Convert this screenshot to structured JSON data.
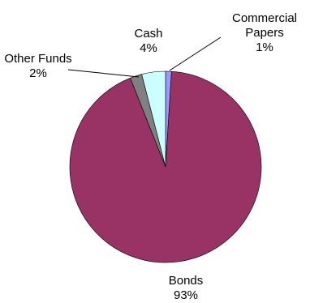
{
  "chart_data": {
    "type": "pie",
    "title": "",
    "start_angle_deg": 0,
    "direction": "clockwise",
    "slices": [
      {
        "name": "Commercial Papers",
        "label_lines": [
          "Commercial",
          "Papers"
        ],
        "value_label": "1%",
        "value": 1,
        "color": "#9999FF"
      },
      {
        "name": "Bonds",
        "label_lines": [
          "Bonds"
        ],
        "value_label": "93%",
        "value": 93,
        "color": "#993366"
      },
      {
        "name": "Other Funds",
        "label_lines": [
          "Other Funds"
        ],
        "value_label": "2%",
        "value": 2,
        "color": "#808080"
      },
      {
        "name": "Cash",
        "label_lines": [
          "Cash"
        ],
        "value_label": "4%",
        "value": 4,
        "color": "#CCFFFF"
      }
    ],
    "legend": "none"
  }
}
